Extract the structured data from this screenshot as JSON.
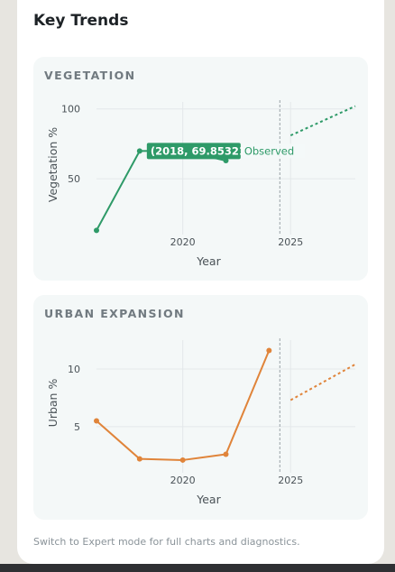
{
  "card": {
    "title": "Key Trends",
    "footer": "Switch to Expert mode for full charts and diagnostics."
  },
  "colors": {
    "vegetation": "#2e9a68",
    "urban": "#e0843a",
    "grid": "#e3e8ea",
    "divider": "#9aa3a8",
    "axis_text": "#4a5257"
  },
  "chart_data": [
    {
      "type": "line",
      "title": "VEGETATION",
      "xlabel": "Year",
      "ylabel": "Vegetation %",
      "xlim": [
        2016,
        2028
      ],
      "ylim": [
        10,
        105
      ],
      "xticks": [
        "2020",
        "2025"
      ],
      "yticks": [
        "50",
        "100"
      ],
      "grid": true,
      "series": [
        {
          "name": "Observed",
          "style": "solid",
          "x": [
            2016,
            2018,
            2020,
            2022
          ],
          "y": [
            13,
            69.85321,
            70,
            63
          ]
        },
        {
          "style": "dashed",
          "x": [
            2025,
            2028
          ],
          "y": [
            81,
            102
          ]
        }
      ],
      "divider_x": 2024.5,
      "tooltip": {
        "label": "(2018, 69.85321)",
        "series_label": "Observed"
      }
    },
    {
      "type": "line",
      "title": "URBAN EXPANSION",
      "xlabel": "Year",
      "ylabel": "Urban %",
      "xlim": [
        2016,
        2028
      ],
      "ylim": [
        1,
        12.5
      ],
      "xticks": [
        "2020",
        "2025"
      ],
      "yticks": [
        "5",
        "10"
      ],
      "grid": true,
      "series": [
        {
          "style": "solid",
          "x": [
            2016,
            2018,
            2020,
            2022,
            2024
          ],
          "y": [
            5.5,
            2.2,
            2.1,
            2.6,
            11.6
          ]
        },
        {
          "style": "dashed",
          "x": [
            2025,
            2028
          ],
          "y": [
            7.3,
            10.4
          ]
        }
      ],
      "divider_x": 2024.5
    }
  ]
}
